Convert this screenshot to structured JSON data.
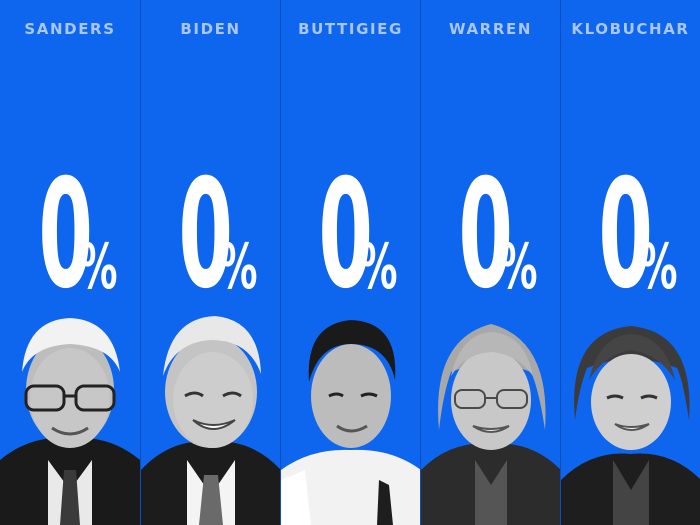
{
  "candidates": [
    {
      "name": "SANDERS",
      "value": "0",
      "unit": "%"
    },
    {
      "name": "BIDEN",
      "value": "0",
      "unit": "%"
    },
    {
      "name": "BUTTIGIEG",
      "value": "0",
      "unit": "%"
    },
    {
      "name": "WARREN",
      "value": "0",
      "unit": "%"
    },
    {
      "name": "KLOBUCHAR",
      "value": "0",
      "unit": "%"
    }
  ],
  "colors": {
    "background": "#0f66ee",
    "label": "#a9c6f7",
    "value": "#ffffff"
  }
}
